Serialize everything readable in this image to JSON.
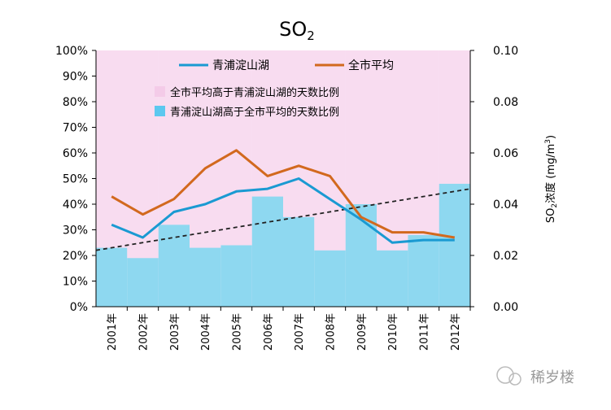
{
  "chart_data": {
    "type": "combo",
    "title": "SO",
    "title_sub": "2",
    "categories": [
      "2001年",
      "2002年",
      "2003年",
      "2004年",
      "2005年",
      "2006年",
      "2007年",
      "2008年",
      "2009年",
      "2010年",
      "2011年",
      "2012年"
    ],
    "y_left": {
      "ticks": [
        "0%",
        "10%",
        "20%",
        "30%",
        "40%",
        "50%",
        "60%",
        "70%",
        "80%",
        "90%",
        "100%"
      ],
      "ylim": [
        0,
        100
      ]
    },
    "y_right": {
      "ticks": [
        "0.00",
        "0.02",
        "0.04",
        "0.06",
        "0.08",
        "0.10"
      ],
      "ylim": [
        0,
        0.1
      ],
      "label_pre": "SO",
      "label_sub": "2",
      "label_mid": "浓度 (mg/m",
      "label_sup": "3",
      "label_post": ")"
    },
    "bars_cyan": {
      "name": "青浦淀山湖高于全市平均的天数比例",
      "color": "#8ed8f0",
      "values": [
        23,
        19,
        32,
        23,
        24,
        43,
        35,
        22,
        40,
        22,
        28,
        48
      ]
    },
    "bars_pink": {
      "name": "全市平均高于青浦淀山湖的天数比例",
      "color": "#f8dcf0",
      "values": [
        77,
        81,
        68,
        77,
        76,
        57,
        65,
        78,
        60,
        78,
        72,
        52
      ]
    },
    "lines": [
      {
        "name": "青浦淀山湖",
        "color": "#1a9ad2",
        "values": [
          0.032,
          0.027,
          0.037,
          0.04,
          0.045,
          0.046,
          0.05,
          0.042,
          0.034,
          0.025,
          0.026,
          0.026
        ]
      },
      {
        "name": "全市平均",
        "color": "#d2691e",
        "values": [
          0.043,
          0.036,
          0.042,
          0.054,
          0.061,
          0.051,
          0.055,
          0.051,
          0.035,
          0.029,
          0.029,
          0.027
        ]
      }
    ],
    "trend": {
      "values_percent": [
        22,
        46
      ]
    },
    "watermark": "稀岁楼"
  },
  "colors": {
    "plot_bg": "#fbe6f6",
    "trend": "#222222",
    "axis": "#000000"
  }
}
